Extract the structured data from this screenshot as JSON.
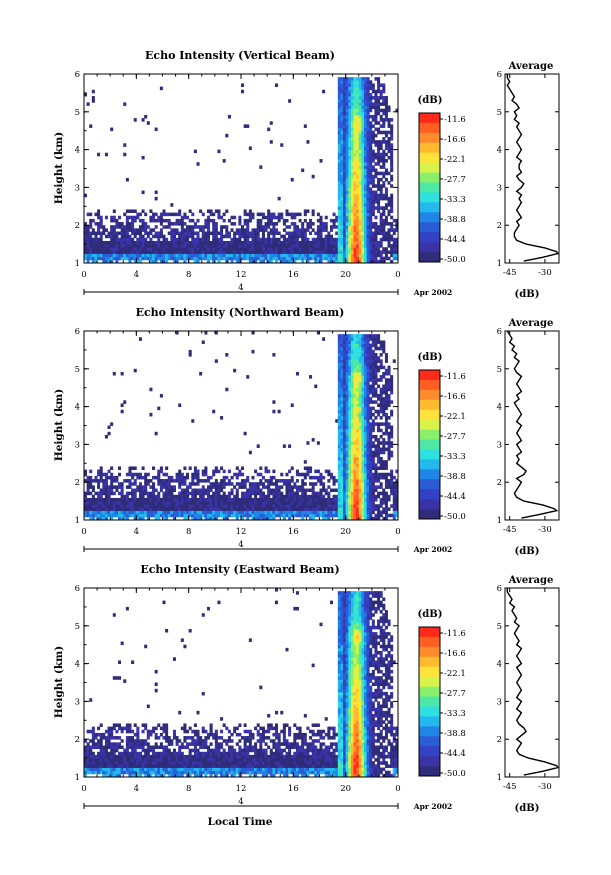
{
  "chart_data": [
    {
      "type": "heatmap",
      "title": "Echo Intensity (Vertical Beam)",
      "xlabel": "",
      "ylabel": "Height (km)",
      "xlim": [
        0,
        24
      ],
      "ylim": [
        1,
        6
      ],
      "xticks": [
        "0",
        "4",
        "8",
        "12",
        "16",
        "20",
        "0"
      ],
      "yticks": [
        "1",
        "2",
        "3",
        "4",
        "5",
        "6"
      ],
      "date_axis": {
        "tick": "4",
        "label": "Apr 2002"
      },
      "colorbar": {
        "label": "(dB)",
        "ticks": [
          "-11.6",
          "-16.6",
          "-22.1",
          "-27.7",
          "-33.3",
          "-38.8",
          "-44.4",
          "-50.0"
        ],
        "colors": [
          "#ff2a1a",
          "#ff5e22",
          "#ff8c2c",
          "#ffbb2e",
          "#ffe23a",
          "#d8f24a",
          "#8af06b",
          "#4ee8a6",
          "#2ee0e0",
          "#23b8ee",
          "#1f86e6",
          "#2a5cd6",
          "#3342c4",
          "#3a33a8",
          "#2f2c7a"
        ]
      },
      "profile": {
        "title": "Average",
        "xlabel": "(dB)",
        "xticks": [
          "-45",
          "-30"
        ],
        "yticks": [
          "1",
          "2",
          "3",
          "4",
          "5",
          "6"
        ],
        "xlim": [
          -47,
          -24
        ],
        "ylim": [
          1,
          6
        ],
        "height": [
          1.05,
          1.15,
          1.25,
          1.3,
          1.4,
          1.5,
          1.6,
          1.7,
          1.8,
          1.9,
          2.0,
          2.1,
          2.2,
          2.3,
          2.4,
          2.5,
          2.6,
          2.7,
          2.8,
          2.9,
          3.0,
          3.1,
          3.2,
          3.3,
          3.4,
          3.5,
          3.6,
          3.7,
          3.8,
          3.9,
          4.0,
          4.1,
          4.2,
          4.3,
          4.4,
          4.5,
          4.6,
          4.7,
          4.8,
          4.9,
          5.0,
          5.1,
          5.2,
          5.3,
          5.4,
          5.5,
          5.6,
          5.7,
          5.8,
          5.9,
          6.0
        ],
        "value": [
          -39,
          -31,
          -24.5,
          -25,
          -30,
          -38,
          -42,
          -43,
          -43,
          -42,
          -41,
          -42,
          -40,
          -41,
          -42,
          -41,
          -40,
          -41,
          -40,
          -42,
          -40,
          -39,
          -41,
          -42,
          -40,
          -41,
          -41,
          -40,
          -42,
          -41,
          -40,
          -41,
          -42,
          -41,
          -40,
          -41,
          -42,
          -41,
          -43,
          -42,
          -43,
          -41,
          -42,
          -44,
          -43,
          -44,
          -45,
          -46,
          -45,
          -46,
          -46
        ]
      }
    },
    {
      "type": "heatmap",
      "title": "Echo Intensity (Northward Beam)",
      "xlabel": "",
      "ylabel": "Height (km)",
      "xlim": [
        0,
        24
      ],
      "ylim": [
        1,
        6
      ],
      "xticks": [
        "0",
        "4",
        "8",
        "12",
        "16",
        "20",
        "0"
      ],
      "yticks": [
        "1",
        "2",
        "3",
        "4",
        "5",
        "6"
      ],
      "date_axis": {
        "tick": "4",
        "label": "Apr 2002"
      },
      "colorbar": {
        "label": "(dB)",
        "ticks": [
          "-11.6",
          "-16.6",
          "-22.1",
          "-27.7",
          "-33.3",
          "-38.8",
          "-44.4",
          "-50.0"
        ],
        "colors": [
          "#ff2a1a",
          "#ff5e22",
          "#ff8c2c",
          "#ffbb2e",
          "#ffe23a",
          "#d8f24a",
          "#8af06b",
          "#4ee8a6",
          "#2ee0e0",
          "#23b8ee",
          "#1f86e6",
          "#2a5cd6",
          "#3342c4",
          "#3a33a8",
          "#2f2c7a"
        ]
      },
      "profile": {
        "title": "Average",
        "xlabel": "(dB)",
        "xticks": [
          "-45",
          "-30"
        ],
        "yticks": [
          "1",
          "2",
          "3",
          "4",
          "5",
          "6"
        ],
        "xlim": [
          -47,
          -24
        ],
        "ylim": [
          1,
          6
        ],
        "height": [
          1.05,
          1.15,
          1.25,
          1.3,
          1.4,
          1.5,
          1.6,
          1.7,
          1.8,
          1.9,
          2.0,
          2.1,
          2.2,
          2.3,
          2.4,
          2.5,
          2.6,
          2.7,
          2.8,
          2.9,
          3.0,
          3.1,
          3.2,
          3.3,
          3.4,
          3.5,
          3.6,
          3.7,
          3.8,
          3.9,
          4.0,
          4.1,
          4.2,
          4.3,
          4.4,
          4.5,
          4.6,
          4.7,
          4.8,
          4.9,
          5.0,
          5.1,
          5.2,
          5.3,
          5.4,
          5.5,
          5.6,
          5.7,
          5.8,
          5.9,
          6.0
        ],
        "value": [
          -40,
          -32,
          -25,
          -26,
          -31,
          -39,
          -42,
          -43,
          -42,
          -41,
          -40,
          -42,
          -39,
          -38,
          -40,
          -42,
          -41,
          -42,
          -40,
          -41,
          -42,
          -40,
          -41,
          -42,
          -41,
          -40,
          -42,
          -41,
          -40,
          -41,
          -42,
          -43,
          -41,
          -42,
          -40,
          -41,
          -42,
          -41,
          -40,
          -42,
          -43,
          -42,
          -41,
          -43,
          -42,
          -44,
          -43,
          -45,
          -44,
          -45,
          -46
        ]
      }
    },
    {
      "type": "heatmap",
      "title": "Echo Intensity (Eastward Beam)",
      "xlabel": "Local Time",
      "ylabel": "Height (km)",
      "xlim": [
        0,
        24
      ],
      "ylim": [
        1,
        6
      ],
      "xticks": [
        "0",
        "4",
        "8",
        "12",
        "16",
        "20",
        "0"
      ],
      "yticks": [
        "1",
        "2",
        "3",
        "4",
        "5",
        "6"
      ],
      "date_axis": {
        "tick": "4",
        "label": "Apr 2002"
      },
      "colorbar": {
        "label": "(dB)",
        "ticks": [
          "-11.6",
          "-16.6",
          "-22.1",
          "-27.7",
          "-33.3",
          "-38.8",
          "-44.4",
          "-50.0"
        ],
        "colors": [
          "#ff2a1a",
          "#ff5e22",
          "#ff8c2c",
          "#ffbb2e",
          "#ffe23a",
          "#d8f24a",
          "#8af06b",
          "#4ee8a6",
          "#2ee0e0",
          "#23b8ee",
          "#1f86e6",
          "#2a5cd6",
          "#3342c4",
          "#3a33a8",
          "#2f2c7a"
        ]
      },
      "profile": {
        "title": "Average",
        "xlabel": "(dB)",
        "xticks": [
          "-45",
          "-30"
        ],
        "yticks": [
          "1",
          "2",
          "3",
          "4",
          "5",
          "6"
        ],
        "xlim": [
          -47,
          -24
        ],
        "ylim": [
          1,
          6
        ],
        "height": [
          1.05,
          1.15,
          1.25,
          1.3,
          1.4,
          1.5,
          1.6,
          1.7,
          1.8,
          1.9,
          2.0,
          2.1,
          2.2,
          2.3,
          2.4,
          2.5,
          2.6,
          2.7,
          2.8,
          2.9,
          3.0,
          3.1,
          3.2,
          3.3,
          3.4,
          3.5,
          3.6,
          3.7,
          3.8,
          3.9,
          4.0,
          4.1,
          4.2,
          4.3,
          4.4,
          4.5,
          4.6,
          4.7,
          4.8,
          4.9,
          5.0,
          5.1,
          5.2,
          5.3,
          5.4,
          5.5,
          5.6,
          5.7,
          5.8,
          5.9,
          6.0
        ],
        "value": [
          -39,
          -31,
          -24.5,
          -25,
          -30,
          -37,
          -41,
          -42,
          -41,
          -40,
          -42,
          -40,
          -38,
          -39,
          -41,
          -42,
          -41,
          -40,
          -42,
          -41,
          -40,
          -42,
          -41,
          -40,
          -41,
          -42,
          -41,
          -40,
          -41,
          -42,
          -40,
          -41,
          -42,
          -41,
          -40,
          -42,
          -41,
          -42,
          -43,
          -42,
          -41,
          -43,
          -42,
          -43,
          -44,
          -43,
          -45,
          -44,
          -45,
          -46,
          -46
        ]
      }
    }
  ]
}
